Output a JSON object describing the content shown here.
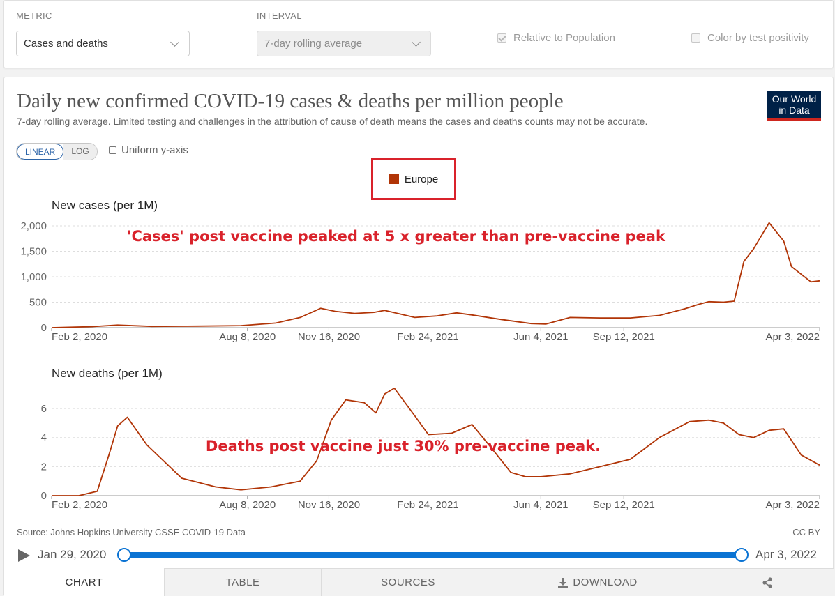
{
  "controls": {
    "metric_label": "METRIC",
    "metric_value": "Cases and deaths",
    "interval_label": "INTERVAL",
    "interval_value": "7-day rolling average",
    "relative_label": "Relative to Population",
    "relative_checked": true,
    "positivity_label": "Color by test positivity",
    "positivity_checked": false
  },
  "header": {
    "title": "Daily new confirmed COVID-19 cases & deaths per million people",
    "subtitle": "7-day rolling average. Limited testing and challenges in the attribution of cause of death means the cases and deaths counts may not be accurate.",
    "logo_line1": "Our World",
    "logo_line2": "in Data"
  },
  "options": {
    "linear_label": "LINEAR",
    "log_label": "LOG",
    "uniform_label": "Uniform y-axis"
  },
  "legend": {
    "label": "Europe",
    "color": "#b13507"
  },
  "chart_data": [
    {
      "type": "line",
      "title": "New cases (per 1M)",
      "annotation": "'Cases' post vaccine peaked at 5 x greater than pre-vaccine peak",
      "x_tick_labels": [
        "Feb 2, 2020",
        "Aug 8, 2020",
        "Nov 16, 2020",
        "Feb 24, 2021",
        "Jun 4, 2021",
        "Sep 12, 2021",
        "Apr 3, 2022"
      ],
      "y_ticks": [
        0,
        500,
        1000,
        1500,
        2000
      ],
      "y_tick_labels": [
        "0",
        "500",
        "1,000",
        "1,500",
        "2,000"
      ],
      "ylim": [
        0,
        2000
      ],
      "xlim": [
        "2020-02-02",
        "2022-04-03"
      ],
      "grid": true,
      "series": [
        {
          "name": "Europe",
          "x": [
            "2020-02-02",
            "2020-03-15",
            "2020-04-10",
            "2020-05-15",
            "2020-07-01",
            "2020-08-15",
            "2020-09-20",
            "2020-10-15",
            "2020-11-05",
            "2020-11-20",
            "2020-12-10",
            "2020-12-30",
            "2021-01-10",
            "2021-02-10",
            "2021-03-05",
            "2021-03-25",
            "2021-04-10",
            "2021-05-10",
            "2021-06-10",
            "2021-06-25",
            "2021-07-20",
            "2021-08-20",
            "2021-09-20",
            "2021-10-20",
            "2021-11-15",
            "2021-11-30",
            "2021-12-10",
            "2021-12-25",
            "2022-01-05",
            "2022-01-15",
            "2022-01-25",
            "2022-02-10",
            "2022-02-25",
            "2022-03-05",
            "2022-03-25",
            "2022-04-03"
          ],
          "y": [
            0,
            20,
            50,
            25,
            30,
            40,
            90,
            200,
            380,
            320,
            280,
            300,
            340,
            200,
            230,
            290,
            250,
            160,
            80,
            70,
            200,
            190,
            190,
            240,
            370,
            460,
            510,
            500,
            520,
            1300,
            1550,
            2060,
            1700,
            1200,
            900,
            920
          ]
        }
      ]
    },
    {
      "type": "line",
      "title": "New deaths (per 1M)",
      "annotation": "Deaths post vaccine just 30% pre-vaccine peak.",
      "x_tick_labels": [
        "Feb 2, 2020",
        "Aug 8, 2020",
        "Nov 16, 2020",
        "Feb 24, 2021",
        "Jun 4, 2021",
        "Sep 12, 2021",
        "Apr 3, 2022"
      ],
      "y_ticks": [
        0,
        2,
        4,
        6
      ],
      "y_tick_labels": [
        "0",
        "2",
        "4",
        "6"
      ],
      "ylim": [
        0,
        7.3
      ],
      "xlim": [
        "2020-02-02",
        "2022-04-03"
      ],
      "grid": true,
      "series": [
        {
          "name": "Europe",
          "x": [
            "2020-02-02",
            "2020-03-01",
            "2020-03-20",
            "2020-04-01",
            "2020-04-10",
            "2020-04-20",
            "2020-05-10",
            "2020-06-15",
            "2020-07-20",
            "2020-08-15",
            "2020-09-15",
            "2020-10-15",
            "2020-11-01",
            "2020-11-16",
            "2020-12-01",
            "2020-12-20",
            "2021-01-01",
            "2021-01-10",
            "2021-01-20",
            "2021-02-10",
            "2021-02-24",
            "2021-03-20",
            "2021-04-10",
            "2021-05-01",
            "2021-05-20",
            "2021-06-04",
            "2021-06-20",
            "2021-07-20",
            "2021-08-20",
            "2021-09-20",
            "2021-10-20",
            "2021-11-20",
            "2021-12-10",
            "2021-12-25",
            "2022-01-10",
            "2022-01-25",
            "2022-02-10",
            "2022-02-25",
            "2022-03-15",
            "2022-04-03"
          ],
          "y": [
            0,
            0,
            0.3,
            2.8,
            4.8,
            5.4,
            3.5,
            1.2,
            0.6,
            0.4,
            0.6,
            1.0,
            2.4,
            5.2,
            6.6,
            6.4,
            5.7,
            7.0,
            7.4,
            5.5,
            4.2,
            4.3,
            4.9,
            3.2,
            1.6,
            1.3,
            1.3,
            1.5,
            2.0,
            2.5,
            4.0,
            5.1,
            5.2,
            5.0,
            4.2,
            4.0,
            4.5,
            4.6,
            2.8,
            2.1
          ]
        }
      ]
    }
  ],
  "footer": {
    "source": "Source: Johns Hopkins University CSSE COVID-19 Data",
    "license": "CC BY",
    "timeline_start": "Jan 29, 2020",
    "timeline_end": "Apr 3, 2022"
  },
  "tabs": [
    {
      "label": "CHART",
      "active": true
    },
    {
      "label": "TABLE",
      "active": false
    },
    {
      "label": "SOURCES",
      "active": false
    },
    {
      "label": "DOWNLOAD",
      "active": false
    },
    {
      "label": "",
      "active": false
    }
  ],
  "colors": {
    "annotation": "#d9222b",
    "series": "#b13507",
    "accent": "#0b73d3"
  }
}
